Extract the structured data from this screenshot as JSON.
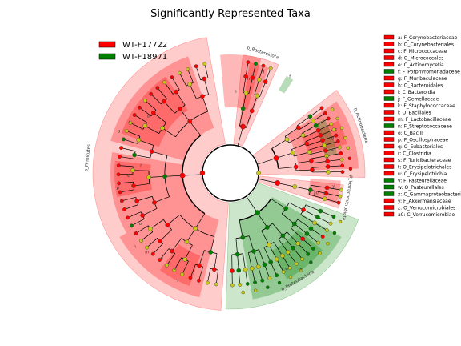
{
  "chart_data": {
    "type": "cladogram",
    "title": "Significantly Represented Taxa",
    "colors": {
      "WT-F17722": "#ff0000",
      "WT-F18971": "#008000",
      "nonsignificant": "#c8c819"
    },
    "legend": [
      {
        "name": "WT-F17722",
        "color": "#ff0000"
      },
      {
        "name": "WT-F18971",
        "color": "#008000"
      }
    ],
    "legend_placement": "top-left",
    "taxa_key_placement": "right",
    "clade_labels": [
      {
        "label": "p_Bacteroidota",
        "group": "WT-F17722"
      },
      {
        "label": "p_Actinobacteria",
        "group": "WT-F17722"
      },
      {
        "label": "p_Verrucomicrobiota",
        "group": "WT-F17722"
      },
      {
        "label": "p_Proteobacteria",
        "group": "WT-F18971"
      },
      {
        "label": "p_Firmicutes",
        "group": "WT-F17722"
      }
    ],
    "taxa_key": [
      {
        "text": "a: F_Corynebacteriaceae",
        "group": "WT-F17722"
      },
      {
        "text": "b: O_Corynebacteriales",
        "group": "WT-F17722"
      },
      {
        "text": "c: F_Micrococcaceae",
        "group": "WT-F17722"
      },
      {
        "text": "d: O_Micrococcales",
        "group": "WT-F17722"
      },
      {
        "text": "e: C_Actinomycetia",
        "group": "WT-F17722"
      },
      {
        "text": "f: F_Porphyromonadaceae",
        "group": "WT-F18971"
      },
      {
        "text": "g: F_Muribaculaceae",
        "group": "WT-F17722"
      },
      {
        "text": "h: O_Bacteroidales",
        "group": "WT-F17722"
      },
      {
        "text": "i: C_Bacteroidia",
        "group": "WT-F17722"
      },
      {
        "text": "j: F_Gemellaceae",
        "group": "WT-F18971"
      },
      {
        "text": "k: F_Staphylococcaceae",
        "group": "WT-F17722"
      },
      {
        "text": "l: O_Bacillales",
        "group": "WT-F17722"
      },
      {
        "text": "m: F_Lactobacillaceae",
        "group": "WT-F17722"
      },
      {
        "text": "n: F_Streptococcaceae",
        "group": "WT-F18971"
      },
      {
        "text": "o: C_Bacilli",
        "group": "WT-F17722"
      },
      {
        "text": "p: F_Oscillospiraceae",
        "group": "WT-F17722"
      },
      {
        "text": "q: O_Eubacteriales",
        "group": "WT-F17722"
      },
      {
        "text": "r: C_Clostridia",
        "group": "WT-F17722"
      },
      {
        "text": "s: F_Turicibacteraceae",
        "group": "WT-F17722"
      },
      {
        "text": "t: O_Erysipelotrichales",
        "group": "WT-F17722"
      },
      {
        "text": "u: C_Erysipelotrichia",
        "group": "WT-F17722"
      },
      {
        "text": "v: F_Pasteurellaceae",
        "group": "WT-F18971"
      },
      {
        "text": "w: O_Pasteurellales",
        "group": "WT-F18971"
      },
      {
        "text": "x: C_Gammaproteobacteri",
        "group": "WT-F18971"
      },
      {
        "text": "y: F_Akkermansiaceae",
        "group": "WT-F17722"
      },
      {
        "text": "z: O_Verrucomicrobiales",
        "group": "WT-F17722"
      },
      {
        "text": "a0: C_Verrucomicrobiae",
        "group": "WT-F17722"
      }
    ]
  }
}
